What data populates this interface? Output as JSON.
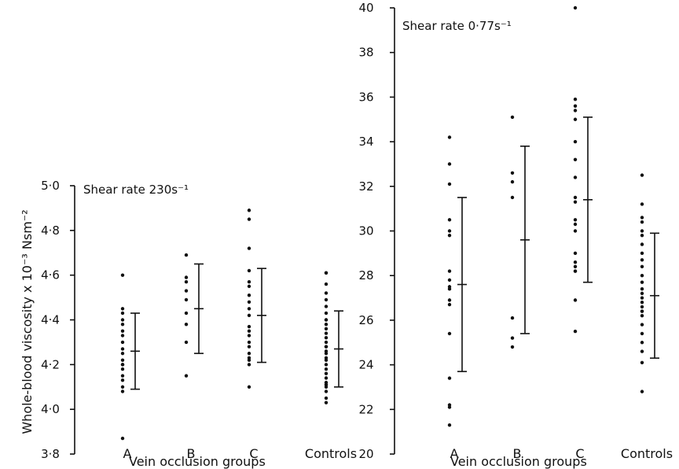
{
  "chart_data": [
    {
      "type": "scatter",
      "title": "Shear rate 230s⁻¹",
      "ylabel": "Whole-blood viscosity x 10⁻³ Nsm⁻²",
      "xlabel": "Vein occlusion groups",
      "categories": [
        "A",
        "B",
        "C",
        "Controls"
      ],
      "ylim": [
        3.8,
        5.0
      ],
      "yticks": [
        "3·8",
        "4·0",
        "4·2",
        "4·4",
        "4·6",
        "4·8",
        "5·0"
      ],
      "ytick_values": [
        3.8,
        4.0,
        4.2,
        4.4,
        4.6,
        4.8,
        5.0
      ],
      "series": [
        {
          "category": "A",
          "points": [
            4.6,
            4.45,
            4.43,
            4.4,
            4.38,
            4.35,
            4.33,
            4.3,
            4.27,
            4.25,
            4.22,
            4.2,
            4.2,
            4.18,
            4.15,
            4.13,
            4.1,
            4.08,
            3.87
          ],
          "mean": 4.26,
          "upper": 4.43,
          "lower": 4.09
        },
        {
          "category": "B",
          "points": [
            4.69,
            4.59,
            4.57,
            4.53,
            4.49,
            4.43,
            4.38,
            4.3,
            4.15
          ],
          "mean": 4.45,
          "upper": 4.65,
          "lower": 4.25
        },
        {
          "category": "C",
          "points": [
            4.89,
            4.85,
            4.72,
            4.62,
            4.57,
            4.55,
            4.51,
            4.48,
            4.45,
            4.42,
            4.37,
            4.35,
            4.33,
            4.3,
            4.28,
            4.25,
            4.23,
            4.22,
            4.2,
            4.1
          ],
          "mean": 4.42,
          "upper": 4.63,
          "lower": 4.21
        },
        {
          "category": "Controls",
          "points": [
            4.61,
            4.61,
            4.56,
            4.52,
            4.49,
            4.46,
            4.43,
            4.4,
            4.4,
            4.38,
            4.36,
            4.34,
            4.32,
            4.3,
            4.28,
            4.28,
            4.26,
            4.25,
            4.23,
            4.22,
            4.2,
            4.18,
            4.16,
            4.14,
            4.12,
            4.11,
            4.11,
            4.1,
            4.08,
            4.05,
            4.03
          ],
          "mean": 4.27,
          "upper": 4.44,
          "lower": 4.1
        }
      ]
    },
    {
      "type": "scatter",
      "title": "Shear rate 0·77s⁻¹",
      "xlabel": "Vein occlusion groups",
      "categories": [
        "A",
        "B",
        "C",
        "Controls"
      ],
      "ylim": [
        20,
        40
      ],
      "yticks": [
        "20",
        "22",
        "24",
        "26",
        "28",
        "30",
        "32",
        "34",
        "36",
        "38",
        "40"
      ],
      "ytick_values": [
        20,
        22,
        24,
        26,
        28,
        30,
        32,
        34,
        36,
        38,
        40
      ],
      "series": [
        {
          "category": "A",
          "points": [
            34.2,
            33.0,
            32.1,
            30.5,
            30.0,
            29.8,
            28.2,
            27.8,
            27.5,
            27.4,
            26.9,
            26.7,
            25.4,
            23.4,
            22.2,
            22.1,
            21.3
          ],
          "mean": 27.6,
          "upper": 31.5,
          "lower": 23.7
        },
        {
          "category": "B",
          "points": [
            35.1,
            32.6,
            32.2,
            31.5,
            26.1,
            25.2,
            24.8
          ],
          "mean": 29.6,
          "upper": 33.8,
          "lower": 25.4
        },
        {
          "category": "C",
          "points": [
            40.0,
            35.9,
            35.6,
            35.4,
            35.0,
            34.0,
            33.2,
            32.4,
            31.5,
            31.3,
            30.5,
            30.3,
            30.0,
            29.0,
            28.6,
            28.4,
            28.2,
            28.2,
            26.9,
            25.5
          ],
          "mean": 31.4,
          "upper": 35.1,
          "lower": 27.7
        },
        {
          "category": "Controls",
          "points": [
            32.5,
            31.2,
            30.6,
            30.4,
            30.0,
            29.8,
            29.4,
            29.0,
            28.7,
            28.4,
            28.0,
            27.7,
            27.4,
            27.2,
            27.0,
            26.8,
            26.6,
            26.4,
            26.4,
            26.2,
            25.8,
            25.4,
            25.0,
            24.6,
            24.1,
            22.8
          ],
          "mean": 27.1,
          "upper": 29.9,
          "lower": 24.3
        }
      ]
    }
  ]
}
